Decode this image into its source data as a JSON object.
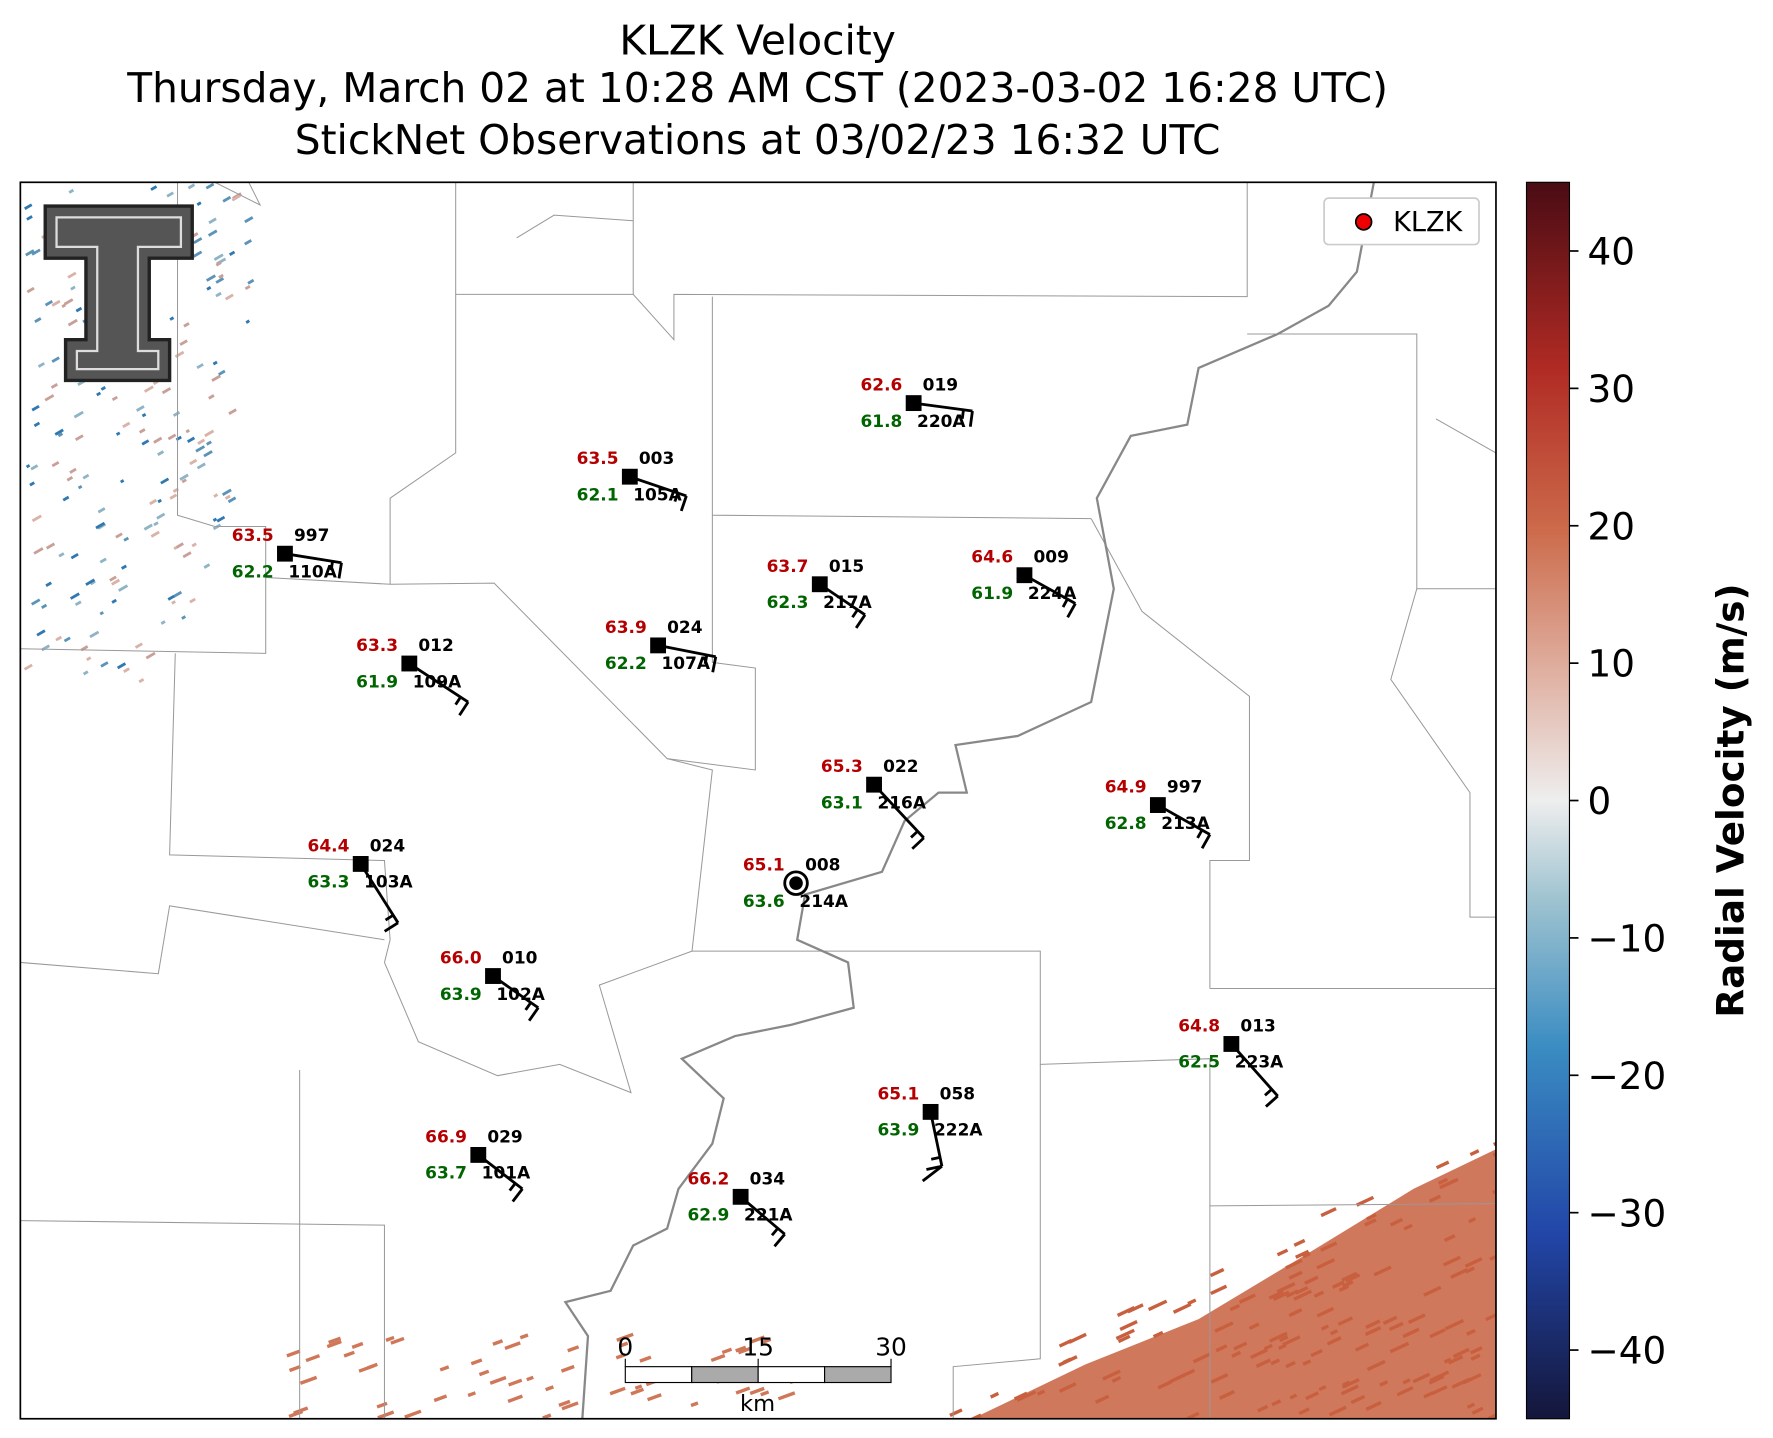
{
  "title": [
    "KLZK Velocity",
    "Thursday, March 02 at 10:28 AM CST (2023-03-02 16:28 UTC)",
    "StickNet Observations at 03/02/23 16:32 UTC"
  ],
  "legend": {
    "label": "KLZK"
  },
  "stations": [
    {
      "temperature": "62.6",
      "dewpoint": "61.8",
      "pressure": "019",
      "id": "220A"
    },
    {
      "temperature": "63.5",
      "dewpoint": "62.1",
      "pressure": "003",
      "id": "105A"
    },
    {
      "temperature": "63.5",
      "dewpoint": "62.2",
      "pressure": "997",
      "id": "110A"
    },
    {
      "temperature": "63.7",
      "dewpoint": "62.3",
      "pressure": "015",
      "id": "217A"
    },
    {
      "temperature": "64.6",
      "dewpoint": "61.9",
      "pressure": "009",
      "id": "224A"
    },
    {
      "temperature": "63.9",
      "dewpoint": "62.2",
      "pressure": "024",
      "id": "107A"
    },
    {
      "temperature": "63.3",
      "dewpoint": "61.9",
      "pressure": "012",
      "id": "109A"
    },
    {
      "temperature": "65.3",
      "dewpoint": "63.1",
      "pressure": "022",
      "id": "216A"
    },
    {
      "temperature": "64.9",
      "dewpoint": "62.8",
      "pressure": "997",
      "id": "213A"
    },
    {
      "temperature": "64.4",
      "dewpoint": "63.3",
      "pressure": "024",
      "id": "103A"
    },
    {
      "temperature": "65.1",
      "dewpoint": "63.6",
      "pressure": "008",
      "id": "214A"
    },
    {
      "temperature": "66.0",
      "dewpoint": "63.9",
      "pressure": "010",
      "id": "102A"
    },
    {
      "temperature": "64.8",
      "dewpoint": "62.5",
      "pressure": "013",
      "id": "223A"
    },
    {
      "temperature": "65.1",
      "dewpoint": "63.9",
      "pressure": "058",
      "id": "222A"
    },
    {
      "temperature": "66.9",
      "dewpoint": "63.7",
      "pressure": "029",
      "id": "101A"
    },
    {
      "temperature": "66.2",
      "dewpoint": "62.9",
      "pressure": "034",
      "id": "221A"
    }
  ],
  "scale_bar": {
    "ticks": [
      0,
      15,
      30
    ],
    "unit": "km"
  },
  "colorbar": {
    "label": "Radial Velocity (m/s)",
    "lim": [
      -45,
      45
    ],
    "ticks": [
      {
        "value": -40,
        "label": "−40"
      },
      {
        "value": -30,
        "label": "−30"
      },
      {
        "value": -20,
        "label": "−20"
      },
      {
        "value": -10,
        "label": "−10"
      },
      0,
      10,
      20,
      30,
      40
    ]
  }
}
